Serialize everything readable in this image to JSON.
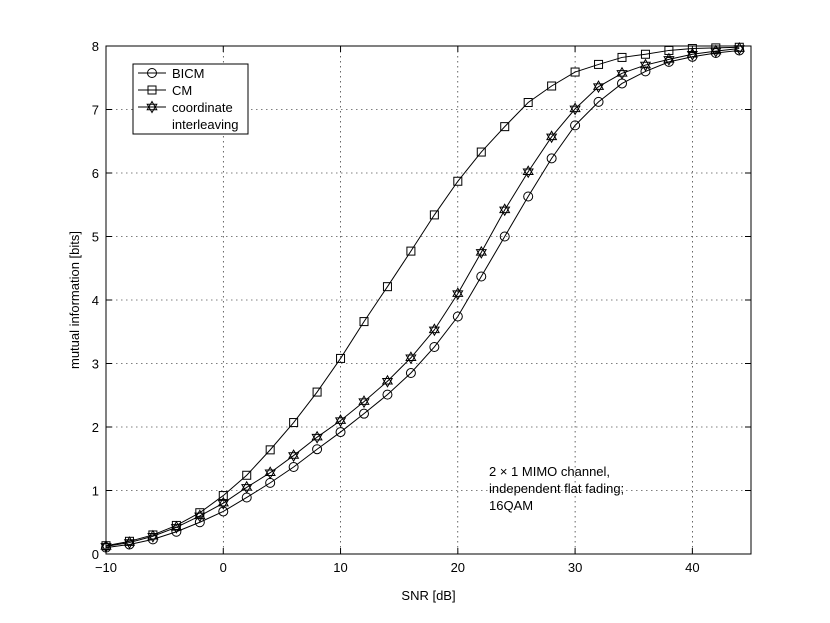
{
  "chart_data": {
    "type": "line",
    "xlabel": "SNR [dB]",
    "ylabel": "mutual information [bits]",
    "xlim": [
      -10,
      45
    ],
    "ylim": [
      0,
      8
    ],
    "xticks": [
      -10,
      0,
      10,
      20,
      30,
      40
    ],
    "yticks": [
      0,
      1,
      2,
      3,
      4,
      5,
      6,
      7,
      8
    ],
    "grid": true,
    "legend_position": "top-left",
    "annotation": [
      "2 × 1 MIMO channel,",
      "independent flat fading;",
      "16QAM"
    ],
    "x": [
      -10,
      -8,
      -6,
      -4,
      -2,
      0,
      2,
      4,
      6,
      8,
      10,
      12,
      14,
      16,
      18,
      20,
      22,
      24,
      26,
      28,
      30,
      32,
      34,
      36,
      38,
      40,
      42,
      44
    ],
    "series": [
      {
        "name": "BICM",
        "marker": "circle",
        "values": [
          0.1,
          0.15,
          0.23,
          0.35,
          0.5,
          0.67,
          0.89,
          1.12,
          1.37,
          1.65,
          1.92,
          2.21,
          2.51,
          2.85,
          3.26,
          3.74,
          4.37,
          5.0,
          5.63,
          6.23,
          6.75,
          7.12,
          7.41,
          7.6,
          7.75,
          7.83,
          7.89,
          7.93
        ]
      },
      {
        "name": "CM",
        "marker": "square",
        "values": [
          0.13,
          0.2,
          0.3,
          0.45,
          0.65,
          0.92,
          1.24,
          1.64,
          2.07,
          2.55,
          3.08,
          3.66,
          4.21,
          4.77,
          5.34,
          5.87,
          6.33,
          6.73,
          7.11,
          7.37,
          7.59,
          7.71,
          7.82,
          7.87,
          7.93,
          7.96,
          7.97,
          7.98
        ]
      },
      {
        "name": "coordinate interleaving",
        "legend_lines": [
          "coordinate",
          "interleaving"
        ],
        "marker": "star",
        "values": [
          0.12,
          0.18,
          0.28,
          0.42,
          0.6,
          0.8,
          1.05,
          1.28,
          1.55,
          1.84,
          2.1,
          2.4,
          2.72,
          3.09,
          3.53,
          4.1,
          4.75,
          5.42,
          6.02,
          6.57,
          7.01,
          7.36,
          7.57,
          7.7,
          7.79,
          7.87,
          7.92,
          7.96
        ]
      }
    ]
  }
}
